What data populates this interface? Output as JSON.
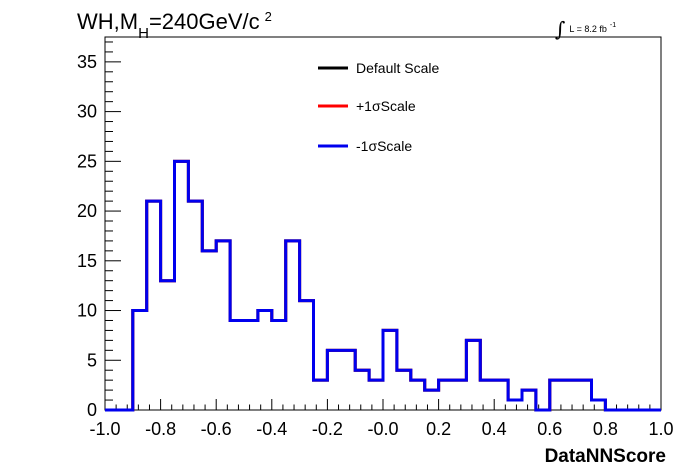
{
  "chart_data": {
    "type": "histogram",
    "title": {
      "main": "WH,M",
      "subscript": "H",
      "rest": "=240GeV/c",
      "superscript": "2"
    },
    "luminosity": {
      "integral_symbol": "∫",
      "text": "L = 8.2 fb",
      "superscript": "-1"
    },
    "xlabel": "DataNNScore",
    "ylabel": "",
    "xlim": [
      -1.0,
      1.0
    ],
    "ylim": [
      0,
      37.5
    ],
    "x_ticks": [
      -1.0,
      -0.8,
      -0.6,
      -0.4,
      -0.2,
      0.0,
      0.2,
      0.4,
      0.6,
      0.8,
      1.0
    ],
    "x_tick_labels": [
      "-1.0",
      "-0.8",
      "-0.6",
      "-0.4",
      "-0.2",
      "-0.0",
      "0.2",
      "0.4",
      "0.6",
      "0.8",
      "1.0"
    ],
    "y_ticks": [
      0,
      5,
      10,
      15,
      20,
      25,
      30,
      35
    ],
    "y_tick_labels": [
      "0",
      "5",
      "10",
      "15",
      "20",
      "25",
      "30",
      "35"
    ],
    "bin_width": 0.05,
    "bin_edges_start": -1.0,
    "series": [
      {
        "name": "Default Scale",
        "color": "#000000",
        "values": [
          0,
          0,
          10,
          21,
          13,
          25,
          21,
          16,
          17,
          9,
          9,
          10,
          9,
          17,
          11,
          3,
          6,
          6,
          4,
          3,
          8,
          4,
          3,
          2,
          3,
          3,
          7,
          3,
          3,
          1,
          2,
          0,
          3,
          3,
          3,
          1,
          0,
          0,
          0,
          0
        ]
      },
      {
        "name": "+1σScale",
        "color": "#ff0000",
        "values": [
          0,
          0,
          10,
          21,
          13,
          25,
          21,
          16,
          17,
          9,
          9,
          10,
          9,
          17,
          11,
          3,
          6,
          6,
          4,
          3,
          8,
          4,
          3,
          2,
          3,
          3,
          7,
          3,
          3,
          1,
          2,
          0,
          3,
          3,
          3,
          1,
          0,
          0,
          0,
          0
        ]
      },
      {
        "name": "-1σScale",
        "color": "#0000ee",
        "values": [
          0,
          0,
          10,
          21,
          13,
          25,
          21,
          16,
          17,
          9,
          9,
          10,
          9,
          17,
          11,
          3,
          6,
          6,
          4,
          3,
          8,
          4,
          3,
          2,
          3,
          3,
          7,
          3,
          3,
          1,
          2,
          0,
          3,
          3,
          3,
          1,
          0,
          0,
          0,
          0
        ]
      }
    ],
    "legend_placement": "top-center",
    "grid": false
  }
}
